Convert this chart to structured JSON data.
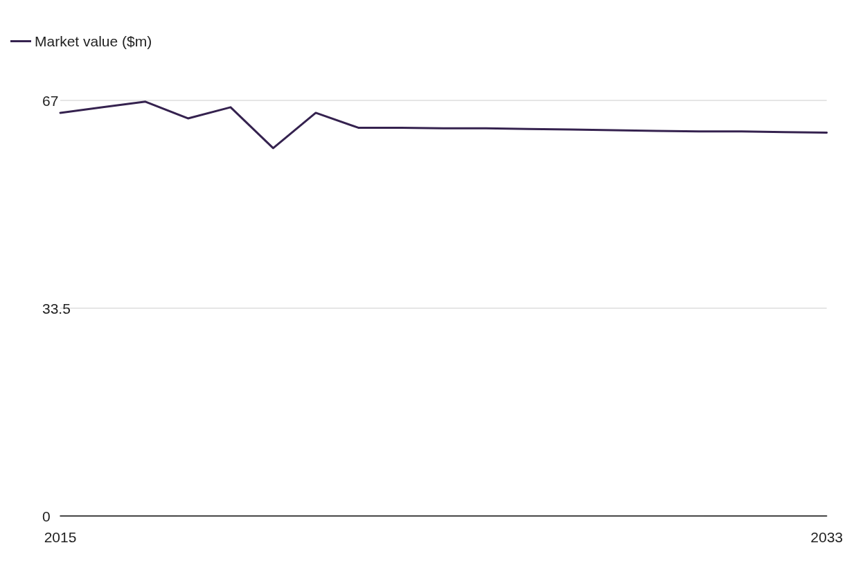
{
  "chart_data": {
    "type": "line",
    "x": [
      2015,
      2016,
      2017,
      2018,
      2019,
      2020,
      2021,
      2022,
      2023,
      2024,
      2025,
      2026,
      2027,
      2028,
      2029,
      2030,
      2031,
      2032,
      2033
    ],
    "series": [
      {
        "name": "Market value ($m)",
        "color": "#35224f",
        "values": [
          65.0,
          65.9,
          66.8,
          64.1,
          65.9,
          59.3,
          65.0,
          62.6,
          62.6,
          62.5,
          62.5,
          62.4,
          62.3,
          62.2,
          62.1,
          62.0,
          62.0,
          61.9,
          61.8
        ]
      }
    ],
    "xlim": [
      2015,
      2033
    ],
    "xticks": [
      2015,
      2033
    ],
    "ylim": [
      0,
      67
    ],
    "yticks": [
      0,
      33.5,
      67
    ],
    "grid": "y",
    "legend": "top left",
    "marker": "none",
    "line_style": "solid"
  }
}
